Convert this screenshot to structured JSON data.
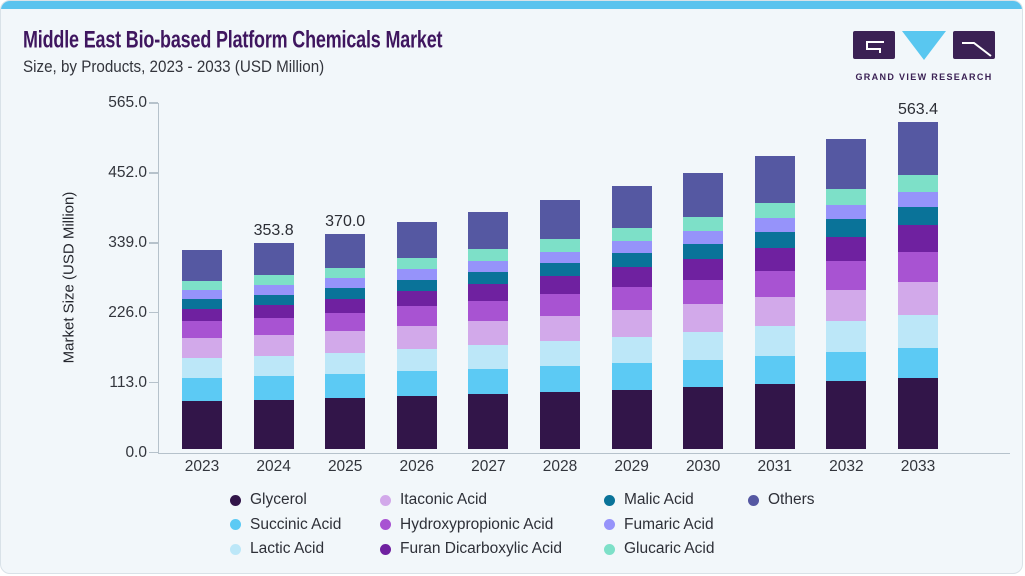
{
  "header": {
    "title": "Middle East Bio-based Platform Chemicals Market",
    "subtitle": "Size, by Products, 2023 - 2033 (USD Million)",
    "logo_text": "GRAND VIEW RESEARCH"
  },
  "colors": {
    "accent_strip": "#5bc3ee",
    "title_purple": "#3f165f",
    "logo_purple": "#3b2154",
    "logo_cyan": "#59c7f0",
    "axis_gray": "#b6c2cb",
    "card_background": "#f2f7fa"
  },
  "chart_data": {
    "type": "bar",
    "stacked": true,
    "title": "Middle East Bio-based Platform Chemicals Market Size, by Products, 2023 - 2033 (USD Million)",
    "xlabel": "",
    "ylabel": "Market Size (USD Million)",
    "ylim": [
      0,
      565
    ],
    "yticks": [
      "565.0",
      "452.0",
      "339.0",
      "226.0",
      "113.0",
      "0.0"
    ],
    "grid": false,
    "legend_position": "bottom",
    "categories": [
      "2023",
      "2024",
      "2025",
      "2026",
      "2027",
      "2028",
      "2029",
      "2030",
      "2031",
      "2032",
      "2033"
    ],
    "series": [
      {
        "name": "Glycerol",
        "color": "#321549",
        "values": [
          81.5,
          83.5,
          86.4,
          90.0,
          93.3,
          97.0,
          101.3,
          105.3,
          110.4,
          115.7,
          120.9
        ]
      },
      {
        "name": "Succinic Acid",
        "color": "#5ccaf4",
        "values": [
          40.5,
          41.1,
          42.1,
          43.2,
          44.2,
          45.4,
          46.8,
          48.0,
          49.7,
          51.4,
          53.0
        ]
      },
      {
        "name": "Lactic Acid",
        "color": "#bce7f8",
        "values": [
          33.5,
          34.7,
          36.3,
          38.4,
          40.3,
          42.4,
          44.9,
          47.2,
          50.2,
          53.3,
          56.3
        ]
      },
      {
        "name": "Itaconic Acid",
        "color": "#d2a9ea",
        "values": [
          35.0,
          36.1,
          37.7,
          39.6,
          41.4,
          43.4,
          45.7,
          47.9,
          50.7,
          53.6,
          56.4
        ]
      },
      {
        "name": "Hydroxypropionic Acid",
        "color": "#a853d2",
        "values": [
          29.0,
          30.2,
          31.8,
          33.9,
          35.8,
          37.9,
          40.4,
          42.7,
          45.7,
          48.8,
          51.8
        ]
      },
      {
        "name": "Furan Dicarboxylic Acid",
        "color": "#6f21a0",
        "values": [
          20.5,
          21.8,
          23.7,
          26.0,
          28.1,
          30.5,
          33.3,
          35.9,
          39.2,
          42.6,
          46.0
        ]
      },
      {
        "name": "Malic Acid",
        "color": "#0a7399",
        "values": [
          17.0,
          17.8,
          18.8,
          20.1,
          21.4,
          22.7,
          24.3,
          25.8,
          27.7,
          29.7,
          31.6
        ]
      },
      {
        "name": "Fumaric Acid",
        "color": "#9693fa",
        "values": [
          16.4,
          16.9,
          17.6,
          18.4,
          19.2,
          20.1,
          21.1,
          22.1,
          23.3,
          24.6,
          25.8
        ]
      },
      {
        "name": "Glucaric Acid",
        "color": "#7de0c8",
        "values": [
          15.5,
          16.2,
          17.3,
          18.6,
          19.8,
          21.1,
          22.7,
          24.1,
          26.0,
          27.9,
          29.8
        ]
      },
      {
        "name": "Others",
        "color": "#5558a2",
        "values": [
          53.5,
          55.5,
          58.3,
          61.8,
          64.9,
          68.6,
          72.7,
          76.6,
          81.5,
          86.6,
          91.8
        ]
      }
    ],
    "totals": [
      342.4,
      353.8,
      370.0,
      390.0,
      408.4,
      429.1,
      453.2,
      475.6,
      504.4,
      534.2,
      563.4
    ],
    "bar_value_labels": {
      "2024": "353.8",
      "2025": "370.0",
      "2033": "563.4"
    }
  },
  "legend": {
    "rows": [
      [
        "Glycerol",
        "Itaconic Acid",
        "Malic Acid",
        "Others"
      ],
      [
        "Succinic Acid",
        "Hydroxypropionic Acid",
        "Fumaric Acid"
      ],
      [
        "Lactic Acid",
        "Furan Dicarboxylic Acid",
        "Glucaric Acid"
      ]
    ]
  }
}
